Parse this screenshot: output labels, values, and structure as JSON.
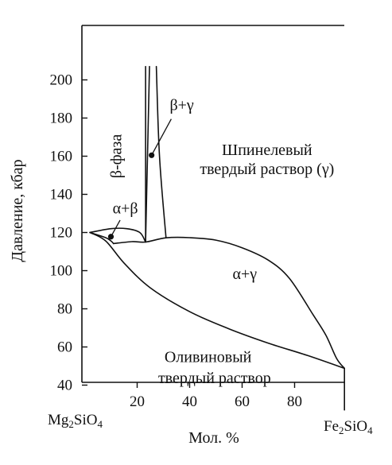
{
  "chart_data": {
    "type": "phase_diagram",
    "title": "",
    "xlabel": "Мол. %",
    "ylabel": "Давление, кбар",
    "xlim": [
      0,
      100
    ],
    "ylim": [
      27,
      207
    ],
    "x_ticks": [
      20,
      40,
      60,
      80
    ],
    "y_ticks": [
      40,
      60,
      80,
      100,
      120,
      140,
      160,
      180,
      200
    ],
    "x_end_labels": {
      "left": {
        "base": "Mg",
        "sub1": "2",
        "mid": "SiO",
        "sub2": "4"
      },
      "right": {
        "base": "Fe",
        "sub1": "2",
        "mid": "SiO",
        "sub2": "4"
      }
    },
    "grid": false,
    "boundaries": [
      {
        "name": "beta-left",
        "points": [
          [
            23.2,
            115
          ],
          [
            23.2,
            207
          ]
        ]
      },
      {
        "name": "gamma-steep-left",
        "points": [
          [
            23.2,
            115
          ],
          [
            24.7,
            207
          ]
        ]
      },
      {
        "name": "gamma-steep-right",
        "points": [
          [
            31.0,
            117.2
          ],
          [
            28.5,
            160
          ],
          [
            27.3,
            207
          ]
        ]
      },
      {
        "name": "alpha-beta-lens-top",
        "points": [
          [
            2,
            120
          ],
          [
            10,
            122
          ],
          [
            16,
            122
          ],
          [
            21,
            120
          ],
          [
            23.2,
            115
          ]
        ]
      },
      {
        "name": "alpha-beta-lens-bottom",
        "points": [
          [
            2,
            120
          ],
          [
            8,
            117.3
          ],
          [
            10,
            115.6
          ],
          [
            11,
            114.2
          ]
        ]
      },
      {
        "name": "beta-gamma-upper",
        "points": [
          [
            11,
            114.2
          ],
          [
            18,
            115.2
          ],
          [
            23.2,
            115
          ],
          [
            31.0,
            117.2
          ],
          [
            40,
            117.3
          ],
          [
            50,
            116
          ],
          [
            60,
            112
          ],
          [
            70,
            105.5
          ],
          [
            78,
            96
          ],
          [
            87,
            77
          ],
          [
            92,
            66
          ],
          [
            96,
            54
          ],
          [
            99,
            48.8
          ]
        ]
      },
      {
        "name": "olivine-solvus",
        "points": [
          [
            2,
            120
          ],
          [
            8,
            115.6
          ],
          [
            15,
            104
          ],
          [
            25,
            91
          ],
          [
            40,
            78.5
          ],
          [
            55,
            69.5
          ],
          [
            70,
            62
          ],
          [
            85,
            55.5
          ],
          [
            99,
            48.8
          ]
        ]
      },
      {
        "name": "right-edge",
        "points": [
          [
            99,
            48.8
          ],
          [
            99,
            27
          ]
        ]
      }
    ],
    "region_labels": [
      {
        "text": "β-фаза",
        "x": 12.5,
        "y": 160,
        "rotate": -90
      },
      {
        "text": "β+γ",
        "x": 37,
        "y": 186
      },
      {
        "text": "Шпинелевый",
        "x": 69.5,
        "y": 162.5
      },
      {
        "text": "твердый раствор (γ)",
        "x": 69.5,
        "y": 152.5
      },
      {
        "text": "α+β",
        "x": 15.5,
        "y": 132
      },
      {
        "text": "α+γ",
        "x": 61,
        "y": 97.5
      },
      {
        "text": "Оливиновый",
        "x": 47,
        "y": 54
      },
      {
        "text": "твердый раствор",
        "x": 49.5,
        "y": 43
      }
    ],
    "leaders": [
      {
        "from": [
          10.0,
          117.8
        ],
        "to": [
          13.5,
          126.5
        ]
      },
      {
        "from": [
          25.5,
          160.5
        ],
        "to": [
          33,
          179.5
        ]
      }
    ],
    "markers": [
      {
        "x": 10.0,
        "y": 117.8
      },
      {
        "x": 25.5,
        "y": 160.5
      }
    ]
  }
}
